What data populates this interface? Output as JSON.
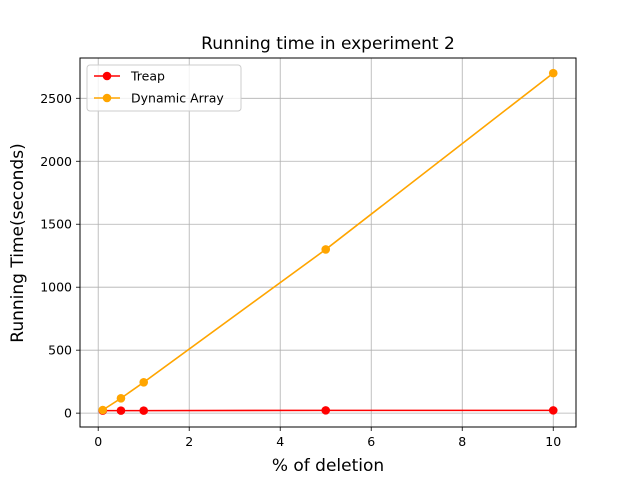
{
  "chart_data": {
    "type": "line",
    "title": "Running time in experiment 2",
    "xlabel": "% of deletion",
    "ylabel": "Running Time(seconds)",
    "xlim": [
      -0.4,
      10.5
    ],
    "ylim": [
      -110,
      2820
    ],
    "xticks": [
      0,
      2,
      4,
      6,
      8,
      10
    ],
    "yticks": [
      0,
      500,
      1000,
      1500,
      2000,
      2500
    ],
    "grid": true,
    "legend_position": "top-left",
    "series": [
      {
        "name": "Treap",
        "color": "#ff0000",
        "x": [
          0.1,
          0.5,
          1,
          5,
          10
        ],
        "y": [
          20,
          20,
          20,
          22,
          22
        ]
      },
      {
        "name": "Dynamic Array",
        "color": "#ffa500",
        "x": [
          0.1,
          0.5,
          1,
          5,
          10
        ],
        "y": [
          25,
          118,
          245,
          1300,
          2700
        ]
      }
    ]
  }
}
